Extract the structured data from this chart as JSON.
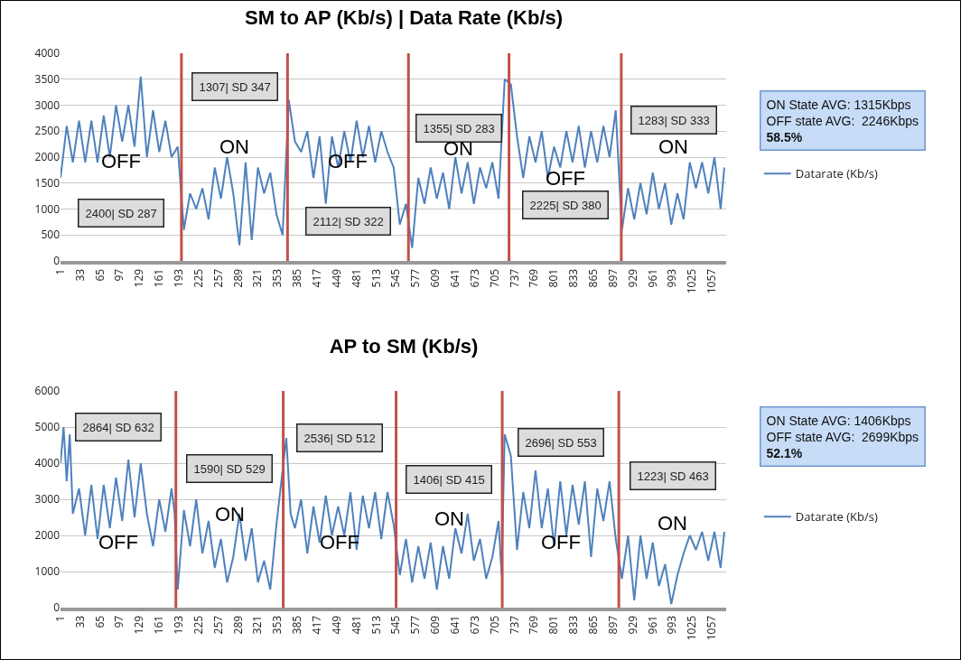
{
  "chart_data": [
    {
      "type": "line",
      "title": "SM to AP (Kb/s) | Data Rate (Kb/s)",
      "legend": "right",
      "grid": "y",
      "marker": "none",
      "line_style": "solid",
      "xlim": [
        1,
        1080
      ],
      "xticks": [
        1,
        33,
        65,
        97,
        129,
        161,
        193,
        225,
        257,
        289,
        321,
        353,
        385,
        417,
        449,
        481,
        513,
        545,
        577,
        609,
        641,
        673,
        705,
        737,
        769,
        801,
        833,
        865,
        897,
        929,
        961,
        993,
        1025,
        1057
      ],
      "ylim": [
        0,
        4000
      ],
      "yticks": [
        0,
        500,
        1000,
        1500,
        2000,
        2500,
        3000,
        3500,
        4000
      ],
      "series": [
        {
          "name": "Datarate (Kb/s)",
          "color": "#4f81bd",
          "x": [
            1,
            11,
            21,
            31,
            41,
            51,
            61,
            71,
            81,
            91,
            101,
            111,
            121,
            131,
            141,
            151,
            161,
            171,
            181,
            191,
            201,
            211,
            221,
            231,
            241,
            251,
            261,
            271,
            281,
            291,
            301,
            311,
            321,
            331,
            341,
            351,
            361,
            371,
            381,
            391,
            401,
            411,
            421,
            431,
            441,
            451,
            461,
            471,
            481,
            491,
            501,
            511,
            521,
            531,
            541,
            551,
            561,
            571,
            581,
            591,
            601,
            611,
            621,
            631,
            641,
            651,
            661,
            671,
            681,
            691,
            701,
            711,
            721,
            731,
            741,
            751,
            761,
            771,
            781,
            791,
            801,
            811,
            821,
            831,
            841,
            851,
            861,
            871,
            881,
            891,
            901,
            911,
            921,
            931,
            941,
            951,
            961,
            971,
            981,
            991,
            1001,
            1011,
            1021,
            1031,
            1041,
            1051,
            1061,
            1071,
            1077
          ],
          "values": [
            1600,
            2600,
            1900,
            2700,
            1900,
            2700,
            1900,
            2800,
            2000,
            3000,
            2300,
            3000,
            2200,
            3550,
            2000,
            2900,
            2100,
            2700,
            2000,
            2200,
            600,
            1300,
            1000,
            1400,
            800,
            1800,
            1200,
            2000,
            1300,
            300,
            1900,
            400,
            1800,
            1300,
            1700,
            900,
            500,
            3100,
            2300,
            2100,
            2500,
            1600,
            2400,
            1100,
            2400,
            1800,
            2500,
            1900,
            2700,
            2000,
            2600,
            1900,
            2500,
            2100,
            1800,
            700,
            1100,
            250,
            1600,
            1100,
            1800,
            1200,
            1700,
            1000,
            2000,
            1300,
            1900,
            1100,
            1800,
            1400,
            1900,
            1200,
            3500,
            3400,
            2400,
            1600,
            2400,
            1900,
            2500,
            1600,
            2200,
            1800,
            2500,
            1900,
            2600,
            1800,
            2500,
            1900,
            2600,
            2000,
            2900,
            600,
            1400,
            800,
            1500,
            900,
            1700,
            1000,
            1500,
            700,
            1300,
            800,
            1900,
            1400,
            1900,
            1300,
            2000,
            1000,
            1800
          ]
        }
      ],
      "ref_lines": [
        {
          "axis": "x",
          "value": 197,
          "color": "#c0504d"
        },
        {
          "axis": "x",
          "value": 369,
          "color": "#c0504d"
        },
        {
          "axis": "x",
          "value": 565,
          "color": "#c0504d"
        },
        {
          "axis": "x",
          "value": 728,
          "color": "#c0504d"
        },
        {
          "axis": "x",
          "value": 910,
          "color": "#c0504d"
        }
      ],
      "annotations": [
        "2400| SD 287",
        "OFF",
        "1307| SD 347",
        "ON",
        "2112| SD 322",
        "OFF",
        "1355| SD 283",
        "ON",
        "2225| SD 380",
        "OFF",
        "1283| SD 333",
        "ON",
        "ON State AVG: 1315Kbps",
        "OFF state AVG:  2246Kbps",
        "58.5%"
      ]
    },
    {
      "type": "line",
      "title": "AP to SM (Kb/s)",
      "legend": "right",
      "grid": "y",
      "marker": "none",
      "line_style": "solid",
      "xlim": [
        1,
        1080
      ],
      "xticks": [
        1,
        33,
        65,
        97,
        129,
        161,
        193,
        225,
        257,
        289,
        321,
        353,
        385,
        417,
        449,
        481,
        513,
        545,
        577,
        609,
        641,
        673,
        705,
        737,
        769,
        801,
        833,
        865,
        897,
        929,
        961,
        993,
        1025,
        1057
      ],
      "ylim": [
        0,
        6000
      ],
      "yticks": [
        0,
        1000,
        2000,
        3000,
        4000,
        5000,
        6000
      ],
      "series": [
        {
          "name": "Datarate (Kb/s)",
          "color": "#4f81bd",
          "x": [
            1,
            6,
            11,
            16,
            21,
            31,
            41,
            51,
            61,
            71,
            81,
            91,
            101,
            111,
            121,
            131,
            141,
            151,
            161,
            171,
            181,
            186,
            191,
            201,
            211,
            221,
            231,
            241,
            251,
            261,
            271,
            281,
            291,
            301,
            311,
            321,
            331,
            341,
            351,
            367,
            374,
            381,
            391,
            401,
            411,
            421,
            431,
            441,
            451,
            461,
            471,
            481,
            491,
            501,
            511,
            521,
            531,
            541,
            551,
            561,
            571,
            581,
            591,
            601,
            611,
            621,
            631,
            641,
            651,
            661,
            671,
            681,
            691,
            701,
            711,
            716,
            721,
            731,
            741,
            751,
            761,
            771,
            781,
            791,
            801,
            811,
            821,
            831,
            841,
            851,
            861,
            871,
            881,
            891,
            901,
            911,
            921,
            931,
            941,
            951,
            961,
            971,
            981,
            991,
            1001,
            1011,
            1021,
            1031,
            1041,
            1051,
            1061,
            1071,
            1077
          ],
          "values": [
            4000,
            5000,
            3500,
            4800,
            2600,
            3300,
            2000,
            3400,
            1900,
            3400,
            2200,
            3600,
            2400,
            4100,
            2500,
            4000,
            2600,
            1700,
            3000,
            2100,
            3300,
            2600,
            500,
            2700,
            1700,
            3000,
            1500,
            2400,
            1100,
            1900,
            700,
            1400,
            2600,
            1300,
            2200,
            700,
            1300,
            500,
            2300,
            4700,
            2600,
            2200,
            3000,
            1500,
            2800,
            1800,
            3100,
            2000,
            2800,
            2000,
            3200,
            1600,
            3100,
            2200,
            3200,
            1900,
            3200,
            2300,
            900,
            1900,
            700,
            1700,
            800,
            1800,
            500,
            1700,
            800,
            2200,
            1500,
            2600,
            1300,
            1900,
            800,
            1400,
            2400,
            900,
            4800,
            4200,
            1600,
            3200,
            2200,
            3800,
            2200,
            3300,
            1700,
            3500,
            2000,
            3400,
            2300,
            3500,
            1400,
            3300,
            2400,
            3500,
            1900,
            800,
            2000,
            200,
            2000,
            800,
            1800,
            600,
            1200,
            100,
            900,
            1500,
            2000,
            1600,
            2100,
            1300,
            2100,
            1100,
            2100
          ]
        }
      ],
      "ref_lines": [
        {
          "axis": "x",
          "value": 188,
          "color": "#c0504d"
        },
        {
          "axis": "x",
          "value": 362,
          "color": "#c0504d"
        },
        {
          "axis": "x",
          "value": 545,
          "color": "#c0504d"
        },
        {
          "axis": "x",
          "value": 717,
          "color": "#c0504d"
        },
        {
          "axis": "x",
          "value": 906,
          "color": "#c0504d"
        }
      ],
      "annotations": [
        "2864| SD 632",
        "OFF",
        "1590| SD 529",
        "ON",
        "2536| SD 512",
        "OFF",
        "1406| SD 415",
        "ON",
        "2696| SD 553",
        "OFF",
        "1223| SD 463",
        "ON",
        "ON State AVG: 1406Kbps",
        "OFF state AVG:  2699Kbps",
        "52.1%"
      ]
    }
  ]
}
